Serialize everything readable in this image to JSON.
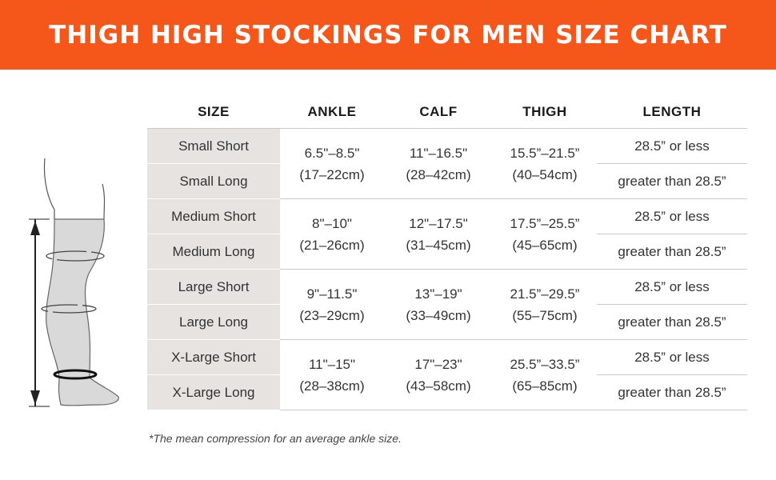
{
  "header": {
    "title": "THIGH HIGH STOCKINGS FOR MEN SIZE CHART",
    "background_color": "#f5561a"
  },
  "illustration": {
    "icon": "leg-measurement-icon"
  },
  "table": {
    "headers": {
      "size": "SIZE",
      "ankle": "ANKLE",
      "calf": "CALF",
      "thigh": "THIGH",
      "length": "LENGTH"
    },
    "groups": [
      {
        "short_label": "Small Short",
        "long_label": "Small Long",
        "ankle_in": "6.5\"–8.5\"",
        "ankle_cm": "(17–22cm)",
        "calf_in": "11\"–16.5\"",
        "calf_cm": "(28–42cm)",
        "thigh_in": "15.5”–21.5”",
        "thigh_cm": "(40–54cm)",
        "short_length": "28.5” or less",
        "long_length": "greater than 28.5”"
      },
      {
        "short_label": "Medium Short",
        "long_label": "Medium Long",
        "ankle_in": "8\"–10\"",
        "ankle_cm": "(21–26cm)",
        "calf_in": "12\"–17.5\"",
        "calf_cm": "(31–45cm)",
        "thigh_in": "17.5”–25.5”",
        "thigh_cm": "(45–65cm)",
        "short_length": "28.5” or less",
        "long_length": "greater than 28.5”"
      },
      {
        "short_label": "Large Short",
        "long_label": "Large Long",
        "ankle_in": "9\"–11.5\"",
        "ankle_cm": "(23–29cm)",
        "calf_in": "13\"–19\"",
        "calf_cm": "(33–49cm)",
        "thigh_in": "21.5”–29.5”",
        "thigh_cm": "(55–75cm)",
        "short_length": "28.5” or less",
        "long_length": "greater than 28.5”"
      },
      {
        "short_label": "X-Large Short",
        "long_label": "X-Large Long",
        "ankle_in": "11\"–15\"",
        "ankle_cm": "(28–38cm)",
        "calf_in": "17\"–23\"",
        "calf_cm": "(43–58cm)",
        "thigh_in": "25.5”–33.5”",
        "thigh_cm": "(65–85cm)",
        "short_length": "28.5” or less",
        "long_length": "greater than 28.5”"
      }
    ]
  },
  "footnote": "*The mean compression for an average ankle size."
}
